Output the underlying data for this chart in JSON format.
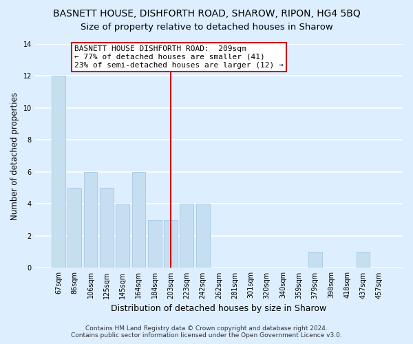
{
  "title": "BASNETT HOUSE, DISHFORTH ROAD, SHAROW, RIPON, HG4 5BQ",
  "subtitle": "Size of property relative to detached houses in Sharow",
  "xlabel": "Distribution of detached houses by size in Sharow",
  "ylabel": "Number of detached properties",
  "bin_labels": [
    "67sqm",
    "86sqm",
    "106sqm",
    "125sqm",
    "145sqm",
    "164sqm",
    "184sqm",
    "203sqm",
    "223sqm",
    "242sqm",
    "262sqm",
    "281sqm",
    "301sqm",
    "320sqm",
    "340sqm",
    "359sqm",
    "379sqm",
    "398sqm",
    "418sqm",
    "437sqm",
    "457sqm"
  ],
  "bin_counts": [
    12,
    5,
    6,
    5,
    4,
    6,
    3,
    3,
    4,
    4,
    0,
    0,
    0,
    0,
    0,
    0,
    1,
    0,
    0,
    1,
    0
  ],
  "bar_color": "#c5dff0",
  "bar_edge_color": "#aacde8",
  "vline_x_index": 7,
  "vline_color": "#cc0000",
  "annotation_line1": "BASNETT HOUSE DISHFORTH ROAD:  209sqm",
  "annotation_line2": "← 77% of detached houses are smaller (41)",
  "annotation_line3": "23% of semi-detached houses are larger (12) →",
  "annotation_box_color": "#ffffff",
  "annotation_box_edge": "#cc0000",
  "ylim": [
    0,
    14
  ],
  "yticks": [
    0,
    2,
    4,
    6,
    8,
    10,
    12,
    14
  ],
  "footer_line1": "Contains HM Land Registry data © Crown copyright and database right 2024.",
  "footer_line2": "Contains public sector information licensed under the Open Government Licence v3.0.",
  "bg_color": "#ddeeff",
  "grid_color": "#ffffff",
  "title_fontsize": 10,
  "subtitle_fontsize": 9.5,
  "xlabel_fontsize": 9,
  "ylabel_fontsize": 8.5,
  "tick_fontsize": 7,
  "annotation_fontsize": 8,
  "footer_fontsize": 6.5
}
